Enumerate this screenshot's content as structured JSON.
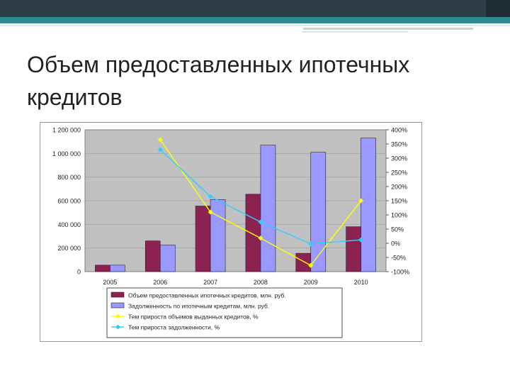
{
  "slide": {
    "title": "Объем предоставленных ипотечных кредитов"
  },
  "chart_data": {
    "type": "bar",
    "categories": [
      "2005",
      "2006",
      "2007",
      "2008",
      "2009",
      "2010"
    ],
    "series": [
      {
        "name": "Объем предоставленных ипотечных кредитов, млн. руб.",
        "kind": "bar",
        "axis": "left",
        "color": "#8b2252",
        "values": [
          55000,
          260000,
          555000,
          655000,
          155000,
          380000
        ]
      },
      {
        "name": "Задолженность по ипотечным кредитам, млн. руб.",
        "kind": "bar",
        "axis": "left",
        "color": "#9999ff",
        "values": [
          55000,
          225000,
          610000,
          1070000,
          1010000,
          1130000
        ]
      },
      {
        "name": "Тем прироста объемов выданных кредитов, %",
        "kind": "line",
        "axis": "right",
        "color": "#ffff00",
        "values": [
          null,
          365,
          110,
          18,
          -78,
          150
        ]
      },
      {
        "name": "Тем прироста задолженности, %",
        "kind": "line",
        "axis": "right",
        "color": "#33ccff",
        "values": [
          null,
          330,
          165,
          75,
          -2,
          12
        ]
      }
    ],
    "left_axis": {
      "ylim": [
        0,
        1200000
      ],
      "ticks": [
        "0",
        "200 000",
        "400 000",
        "600 000",
        "800 000",
        "1 000 000",
        "1 200 000"
      ]
    },
    "right_axis": {
      "ylim": [
        -100,
        400
      ],
      "ticks": [
        "-100%",
        "-50%",
        "0%",
        "50%",
        "100%",
        "150%",
        "200%",
        "250%",
        "300%",
        "350%",
        "400%"
      ]
    },
    "grid": true,
    "legend_position": "bottom",
    "plot_background": "#c0c0c0"
  }
}
